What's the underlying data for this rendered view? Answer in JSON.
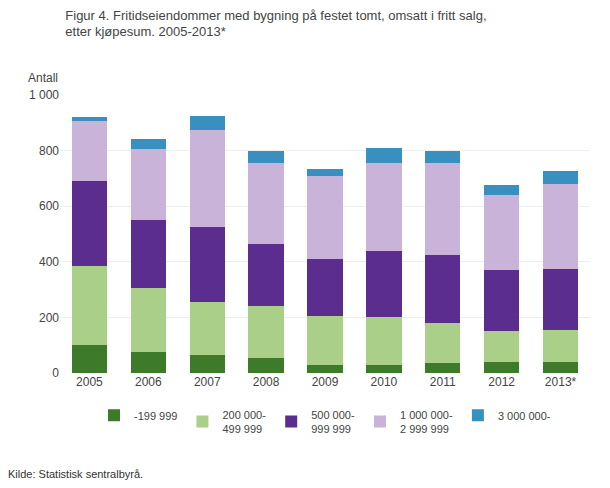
{
  "chart_data": {
    "type": "bar",
    "stacked": true,
    "title": "Figur 4. Fritidseiendommer med bygning på festet tomt, omsatt i fritt salg,\netter kjøpesum. 2005-2013*",
    "ylabel": "Antall",
    "source": "Kilde: Statistisk sentralbyrå.",
    "categories": [
      "2005",
      "2006",
      "2007",
      "2008",
      "2009",
      "2010",
      "2011",
      "2012",
      "2013*"
    ],
    "series": [
      {
        "name": "-199 999",
        "color": "#3d7a2a",
        "values": [
          100,
          75,
          65,
          55,
          30,
          30,
          35,
          40,
          40
        ]
      },
      {
        "name": "200 000-\n499 999",
        "color": "#aacf88",
        "values": [
          285,
          230,
          190,
          185,
          175,
          170,
          145,
          110,
          115
        ]
      },
      {
        "name": "500 000-\n999 999",
        "color": "#5b2d8e",
        "values": [
          305,
          245,
          270,
          225,
          205,
          240,
          245,
          220,
          220
        ]
      },
      {
        "name": "1 000 000-\n2 999 999",
        "color": "#c9b3d9",
        "values": [
          215,
          255,
          350,
          290,
          300,
          315,
          330,
          270,
          305
        ]
      },
      {
        "name": "3 000 000-",
        "color": "#3a8fc1",
        "values": [
          15,
          35,
          50,
          45,
          25,
          55,
          45,
          35,
          45
        ]
      }
    ],
    "ylim": [
      0,
      1000
    ],
    "yticks": [
      0,
      200,
      400,
      600,
      800,
      {
        "value": 1000,
        "label": "1 000"
      }
    ],
    "grid": true,
    "legend": "bottom"
  }
}
